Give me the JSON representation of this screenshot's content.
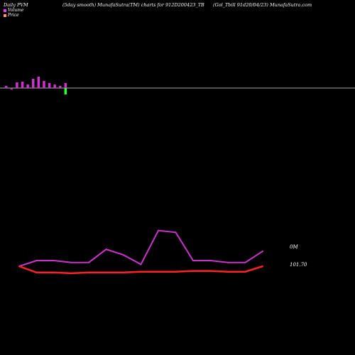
{
  "header": {
    "left": "Daily PVM",
    "center": "(5day smooth) MunafaSutra(TM) charts for 912D200423_TB",
    "right": "(Gol_Tbill 91d20/04/23) MunafaSutra.com"
  },
  "legend": [
    {
      "label": "Volume",
      "color": "#ff33ff"
    },
    {
      "label": "Price",
      "color": "#ff9966"
    }
  ],
  "colors": {
    "background": "#000000",
    "baseline": "#aaaaaa",
    "volume_up": "#cc33cc",
    "volume_down": "#33ff33",
    "pvm_line": "#cc33cc",
    "price_line": "#ff2222"
  },
  "chart_data": [
    {
      "type": "bar",
      "name": "volume",
      "values": [
        3,
        -2,
        8,
        9,
        5,
        13,
        16,
        10,
        7,
        5,
        3,
        7
      ],
      "down": [
        false,
        true,
        false,
        false,
        false,
        false,
        false,
        false,
        false,
        false,
        false,
        true
      ],
      "down_values": [
        0,
        0,
        0,
        0,
        0,
        0,
        0,
        0,
        0,
        0,
        0,
        -9
      ]
    },
    {
      "type": "line",
      "series": [
        {
          "name": "PVM",
          "values": [
            0,
            3,
            3,
            2,
            2,
            9,
            6,
            1,
            19,
            18,
            3,
            3,
            2,
            2,
            8
          ]
        },
        {
          "name": "Price",
          "values": [
            101.7,
            101.62,
            101.62,
            101.61,
            101.62,
            101.62,
            101.62,
            101.63,
            101.63,
            101.63,
            101.64,
            101.64,
            101.63,
            101.63,
            101.7
          ]
        }
      ],
      "labels": {
        "pvm": "0M",
        "price": "101.70"
      }
    }
  ]
}
